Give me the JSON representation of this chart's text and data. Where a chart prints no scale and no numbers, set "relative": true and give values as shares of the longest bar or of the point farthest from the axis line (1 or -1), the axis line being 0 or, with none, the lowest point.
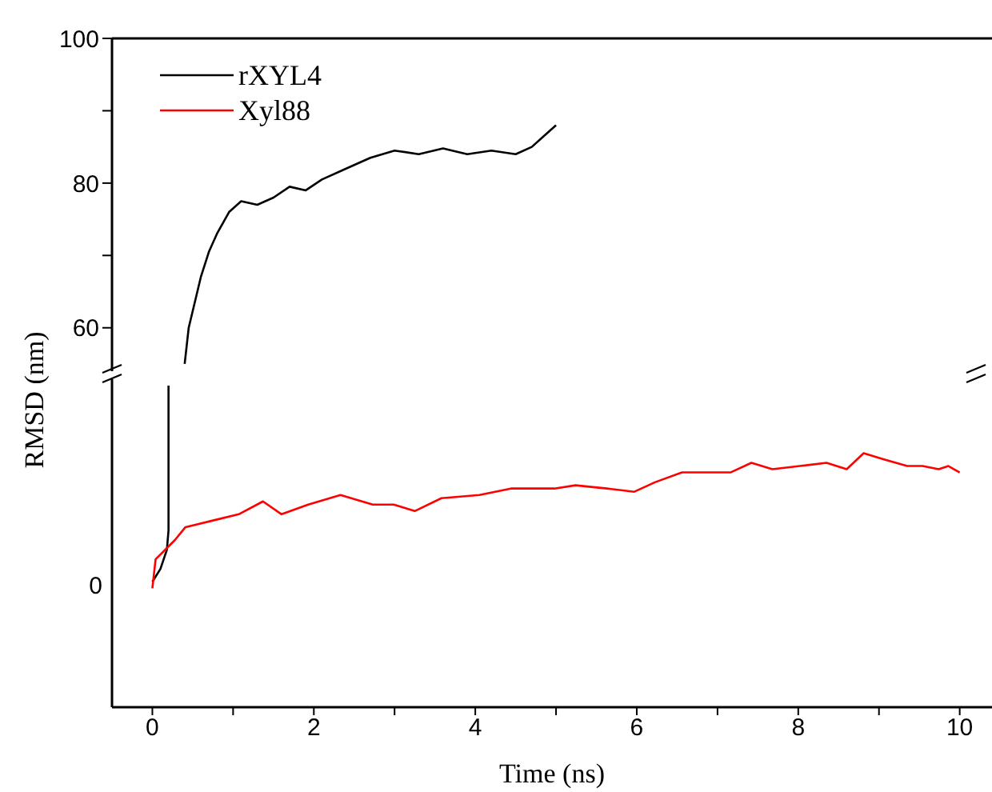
{
  "chart_data": [
    {
      "type": "line",
      "ylabel": "RMSD (nm)",
      "xlim": [
        -0.5,
        10.4
      ],
      "ylim": [
        54,
        100
      ],
      "yticks": [
        60,
        {
          "value": 70,
          "label": null
        },
        80,
        {
          "value": 90,
          "label": null
        },
        100
      ],
      "tick_labels": "y",
      "legend": "top left",
      "marker": "none",
      "line_style": "solid",
      "series": [
        {
          "name": "rXYL4",
          "color": "#000000",
          "x": [
            0.4,
            0.45,
            0.6,
            0.7,
            0.8,
            0.95,
            1.1,
            1.3,
            1.5,
            1.7,
            1.9,
            2.1,
            2.4,
            2.7,
            3.0,
            3.3,
            3.6,
            3.9,
            4.2,
            4.5,
            4.7,
            4.85,
            5.0
          ],
          "values": [
            55,
            60,
            67,
            70.5,
            73,
            76,
            77.5,
            77,
            78,
            79.5,
            79,
            80.5,
            82,
            83.5,
            84.5,
            84,
            84.8,
            84,
            84.5,
            84,
            85,
            86.5,
            88
          ]
        }
      ]
    },
    {
      "type": "line",
      "relative": true,
      "xlabel": "Time (ns)",
      "xlim": [
        -0.5,
        10.4
      ],
      "xticks": [
        0,
        {
          "value": 1,
          "label": null
        },
        2,
        {
          "value": 3,
          "label": null
        },
        4,
        {
          "value": 5,
          "label": null
        },
        6,
        {
          "value": 7,
          "label": null
        },
        8,
        {
          "value": 9,
          "label": null
        },
        10
      ],
      "tick_labels": "x",
      "marker": "none",
      "line_style": "solid",
      "annotations": [
        "0"
      ],
      "series": [
        {
          "name": "rXYL4",
          "color": "#000000",
          "x": [
            0,
            0.1,
            0.18,
            0.2,
            0.2
          ],
          "values": [
            0.39,
            0.43,
            0.49,
            0.55,
            1.0
          ]
        },
        {
          "name": "Xyl88",
          "color": "#ff0000",
          "x": [
            0,
            0.04,
            0.28,
            0.41,
            0.74,
            1.07,
            1.37,
            1.6,
            1.93,
            2.33,
            2.73,
            2.99,
            3.25,
            3.58,
            4.05,
            4.44,
            4.98,
            5.24,
            5.63,
            5.97,
            6.23,
            6.56,
            6.83,
            7.16,
            7.42,
            7.68,
            8.02,
            8.35,
            8.6,
            8.81,
            9.07,
            9.35,
            9.54,
            9.74,
            9.86,
            10.0
          ],
          "values": [
            0.37,
            0.46,
            0.52,
            0.56,
            0.58,
            0.6,
            0.64,
            0.6,
            0.63,
            0.66,
            0.63,
            0.63,
            0.61,
            0.65,
            0.66,
            0.68,
            0.68,
            0.69,
            0.68,
            0.67,
            0.7,
            0.73,
            0.73,
            0.73,
            0.76,
            0.74,
            0.75,
            0.76,
            0.74,
            0.79,
            0.77,
            0.75,
            0.75,
            0.74,
            0.75,
            0.73
          ]
        }
      ]
    }
  ]
}
